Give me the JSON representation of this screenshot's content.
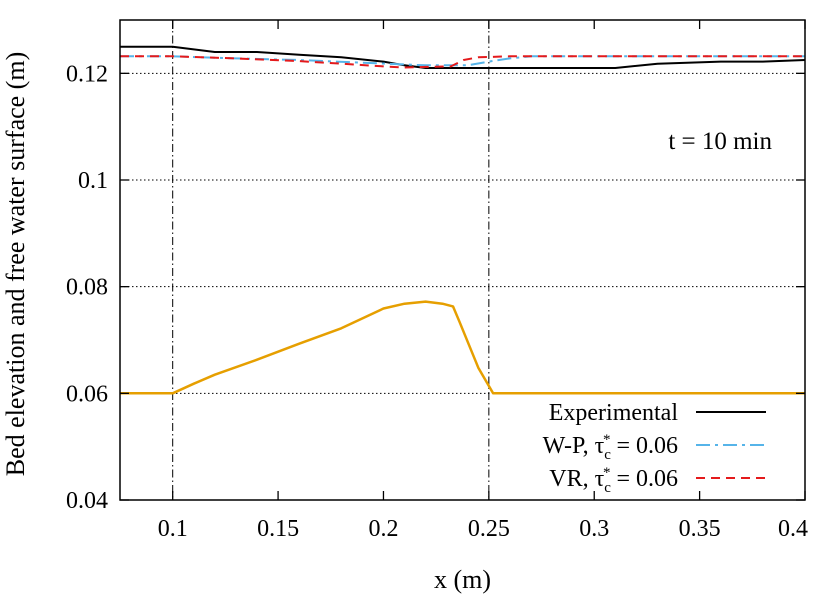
{
  "chart_data": {
    "type": "line",
    "xlabel": "x (m)",
    "ylabel": "Bed elevation and free water surface (m)",
    "xlim": [
      0.075,
      0.4
    ],
    "ylim": [
      0.04,
      0.13
    ],
    "xticks": [
      "0.1",
      "0.15",
      "0.2",
      "0.25",
      "0.3",
      "0.35",
      "0.4"
    ],
    "yticks": [
      "0.04",
      "0.06",
      "0.08",
      "0.1",
      "0.12"
    ],
    "grid": "horizontal dotted",
    "vlines": [
      0.1,
      0.25
    ],
    "annotation": "t = 10 min",
    "legend_position": "bottom-right",
    "series": [
      {
        "name": "Experimental",
        "color": "#000000",
        "dash": "solid",
        "points": [
          [
            0.075,
            0.125
          ],
          [
            0.1,
            0.125
          ],
          [
            0.12,
            0.124
          ],
          [
            0.14,
            0.124
          ],
          [
            0.16,
            0.1235
          ],
          [
            0.18,
            0.123
          ],
          [
            0.2,
            0.1222
          ],
          [
            0.21,
            0.1215
          ],
          [
            0.22,
            0.121
          ],
          [
            0.25,
            0.121
          ],
          [
            0.28,
            0.121
          ],
          [
            0.31,
            0.121
          ],
          [
            0.33,
            0.1218
          ],
          [
            0.36,
            0.1222
          ],
          [
            0.38,
            0.1222
          ],
          [
            0.4,
            0.1225
          ]
        ]
      },
      {
        "name": "W-P, τc* = 0.06",
        "color": "#56b4e9",
        "dash": "dash-dot",
        "points": [
          [
            0.075,
            0.1232
          ],
          [
            0.1,
            0.1232
          ],
          [
            0.13,
            0.1228
          ],
          [
            0.16,
            0.1225
          ],
          [
            0.19,
            0.122
          ],
          [
            0.22,
            0.1215
          ],
          [
            0.24,
            0.1215
          ],
          [
            0.25,
            0.1222
          ],
          [
            0.26,
            0.1228
          ],
          [
            0.27,
            0.1232
          ],
          [
            0.3,
            0.1232
          ],
          [
            0.35,
            0.1232
          ],
          [
            0.4,
            0.1232
          ]
        ]
      },
      {
        "name": "VR, τc* = 0.06",
        "color": "#e41a1c",
        "dash": "dashed",
        "points": [
          [
            0.075,
            0.1232
          ],
          [
            0.1,
            0.1232
          ],
          [
            0.13,
            0.1228
          ],
          [
            0.16,
            0.1223
          ],
          [
            0.18,
            0.1218
          ],
          [
            0.2,
            0.1213
          ],
          [
            0.21,
            0.1211
          ],
          [
            0.22,
            0.1212
          ],
          [
            0.232,
            0.1213
          ],
          [
            0.238,
            0.1225
          ],
          [
            0.245,
            0.123
          ],
          [
            0.26,
            0.1232
          ],
          [
            0.3,
            0.1232
          ],
          [
            0.35,
            0.1232
          ],
          [
            0.4,
            0.1232
          ]
        ]
      },
      {
        "name": "",
        "color": "#e69f00",
        "dash": "solid",
        "points": [
          [
            0.075,
            0.06
          ],
          [
            0.1,
            0.06
          ],
          [
            0.11,
            0.0618
          ],
          [
            0.12,
            0.0635
          ],
          [
            0.14,
            0.0663
          ],
          [
            0.16,
            0.0693
          ],
          [
            0.18,
            0.0722
          ],
          [
            0.2,
            0.0759
          ],
          [
            0.21,
            0.0768
          ],
          [
            0.22,
            0.0772
          ],
          [
            0.228,
            0.0768
          ],
          [
            0.233,
            0.0763
          ],
          [
            0.236,
            0.0735
          ],
          [
            0.245,
            0.0648
          ],
          [
            0.252,
            0.06
          ],
          [
            0.3,
            0.06
          ],
          [
            0.35,
            0.06
          ],
          [
            0.4,
            0.06
          ]
        ]
      }
    ],
    "legend": [
      {
        "label_main": "Experimental",
        "label_sub": "",
        "label_end": "",
        "series_index": 0
      },
      {
        "label_main": "W-P, τ",
        "label_sub": "c",
        "label_end": " = 0.06",
        "series_index": 1
      },
      {
        "label_main": "VR, τ",
        "label_sub": "c",
        "label_end": " = 0.06",
        "series_index": 2
      }
    ]
  }
}
